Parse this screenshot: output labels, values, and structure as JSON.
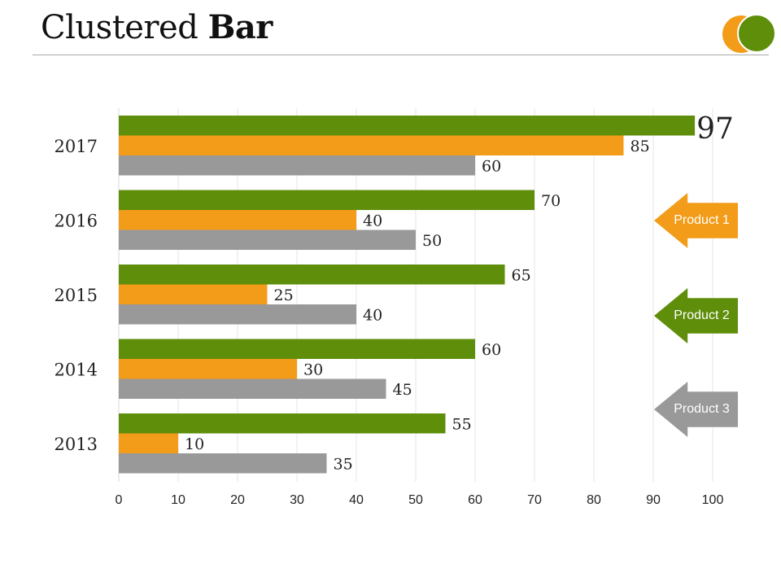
{
  "slide": {
    "title_regular": "Clustered",
    "title_bold": "Bar"
  },
  "colors": {
    "product1": "#f39c1a",
    "product2": "#5e8e0a",
    "product3": "#999999",
    "gridline": "#e6e6e6",
    "axis": "#d9d9d9"
  },
  "chart_data": {
    "type": "bar",
    "orientation": "horizontal",
    "categories": [
      "2017",
      "2016",
      "2015",
      "2014",
      "2013"
    ],
    "series": [
      {
        "name": "Product 2",
        "color": "#5e8e0a",
        "values": [
          97,
          70,
          65,
          60,
          55
        ]
      },
      {
        "name": "Product 1",
        "color": "#f39c1a",
        "values": [
          85,
          40,
          25,
          30,
          10
        ]
      },
      {
        "name": "Product 3",
        "color": "#999999",
        "values": [
          60,
          50,
          40,
          45,
          35
        ]
      }
    ],
    "xlim": [
      0,
      100
    ],
    "xticks": [
      0,
      10,
      20,
      30,
      40,
      50,
      60,
      70,
      80,
      90,
      100
    ],
    "grid": true,
    "title": "",
    "xlabel": "",
    "ylabel": ""
  },
  "legend": [
    {
      "label": "Product 1",
      "color": "#f39c1a"
    },
    {
      "label": "Product 2",
      "color": "#5e8e0a"
    },
    {
      "label": "Product 3",
      "color": "#999999"
    }
  ]
}
